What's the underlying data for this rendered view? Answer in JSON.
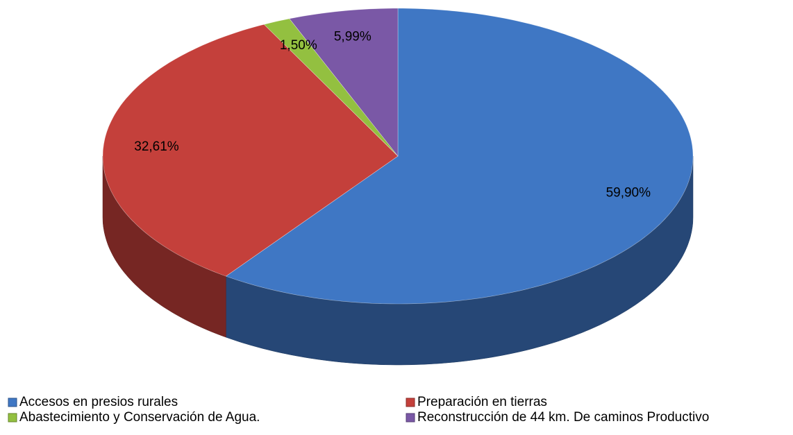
{
  "chart_data": {
    "type": "pie",
    "categories": [
      "Accesos en presios rurales",
      "Preparación en tierras",
      "Abastecimiento y Conservación de Agua.",
      "Reconstrucción de 44 km. De caminos Productivo"
    ],
    "values": [
      59.9,
      32.61,
      1.5,
      5.99
    ],
    "value_labels": [
      "59,90%",
      "32,61%",
      "1,50%",
      "5,99%"
    ],
    "colors": [
      "#3f77c4",
      "#c4403b",
      "#93c040",
      "#7a58a6"
    ],
    "legend": "bottom"
  }
}
